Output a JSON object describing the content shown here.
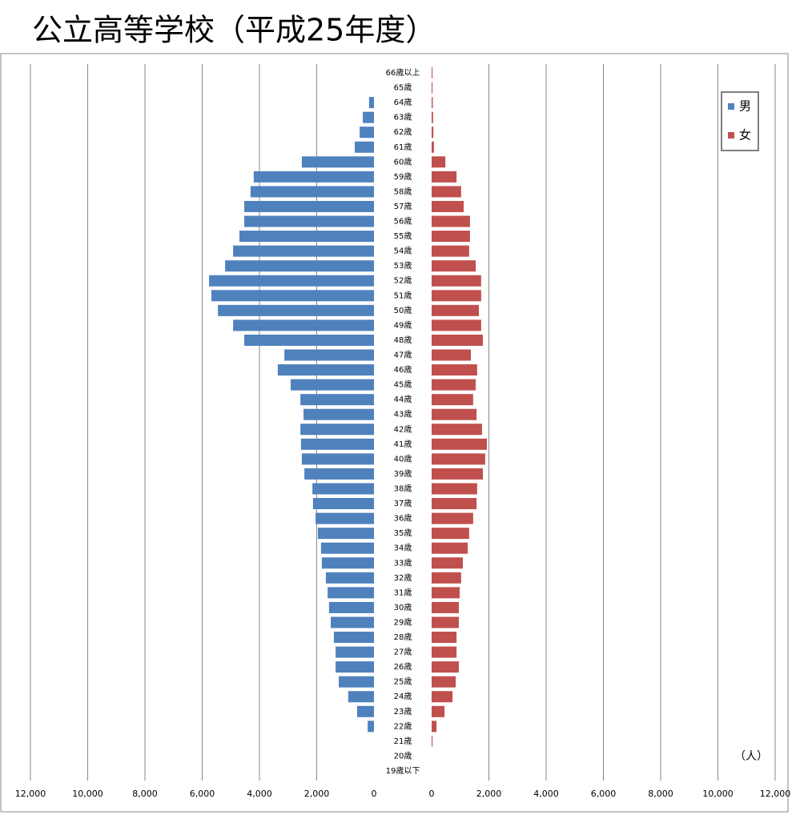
{
  "chart_data": {
    "type": "pyramid",
    "title": "公立高等学校（平成25年度）",
    "unit_label": "（人）",
    "categories": [
      "66歳以上",
      "65歳",
      "64歳",
      "63歳",
      "62歳",
      "61歳",
      "60歳",
      "59歳",
      "58歳",
      "57歳",
      "56歳",
      "55歳",
      "54歳",
      "53歳",
      "52歳",
      "51歳",
      "50歳",
      "49歳",
      "48歳",
      "47歳",
      "46歳",
      "45歳",
      "44歳",
      "43歳",
      "42歳",
      "41歳",
      "40歳",
      "39歳",
      "38歳",
      "37歳",
      "36歳",
      "35歳",
      "34歳",
      "33歳",
      "32歳",
      "31歳",
      "30歳",
      "29歳",
      "28歳",
      "27歳",
      "26歳",
      "25歳",
      "24歳",
      "23歳",
      "22歳",
      "21歳",
      "20歳",
      "19歳以下"
    ],
    "series": [
      {
        "name": "男",
        "color": "#4f81bd",
        "side": "left",
        "values": [
          0,
          0,
          170,
          390,
          500,
          670,
          2520,
          4200,
          4310,
          4530,
          4530,
          4700,
          4920,
          5200,
          5760,
          5680,
          5450,
          4920,
          4530,
          3130,
          3360,
          2910,
          2570,
          2460,
          2570,
          2550,
          2520,
          2430,
          2150,
          2130,
          2040,
          1960,
          1850,
          1820,
          1680,
          1620,
          1570,
          1510,
          1400,
          1340,
          1340,
          1230,
          900,
          590,
          220,
          0,
          0,
          0
        ]
      },
      {
        "name": "女",
        "color": "#c0504d",
        "side": "right",
        "values": [
          30,
          30,
          40,
          50,
          60,
          80,
          480,
          870,
          1030,
          1120,
          1340,
          1340,
          1310,
          1540,
          1730,
          1730,
          1650,
          1730,
          1790,
          1370,
          1590,
          1540,
          1450,
          1570,
          1760,
          1930,
          1870,
          1790,
          1590,
          1570,
          1450,
          1310,
          1260,
          1090,
          1030,
          980,
          950,
          950,
          870,
          870,
          950,
          840,
          730,
          450,
          170,
          30,
          0,
          0
        ]
      }
    ],
    "xlim": [
      0,
      12000
    ],
    "xticks": [
      0,
      {
        "value": 2000,
        "label": "2,000"
      },
      {
        "value": 4000,
        "label": "4,000"
      },
      {
        "value": 6000,
        "label": "6,000"
      },
      {
        "value": 8000,
        "label": "8,000"
      },
      {
        "value": 10000,
        "label": "10,000"
      },
      {
        "value": 12000,
        "label": "12,000"
      }
    ],
    "grid": true,
    "legend": "upper right"
  }
}
